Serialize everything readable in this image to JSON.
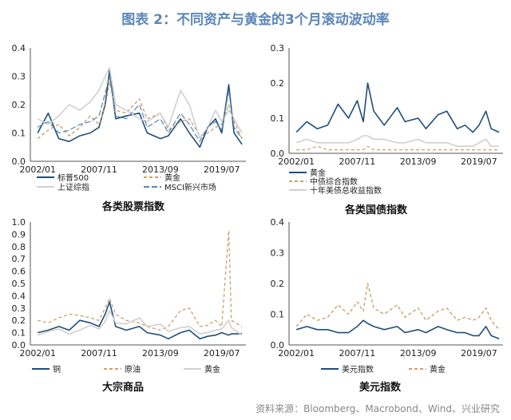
{
  "title": "图表 2：不同资产与黄金的3个月滚动波动率",
  "source": "资料来源：Bloomberg、Macrobond、Wind、兴业研究",
  "chart_data": [
    {
      "type": "line",
      "subtitle": "各类股票指数",
      "xticks": [
        "2002/01",
        "2007/11",
        "2013/09",
        "2019/07"
      ],
      "yticks": [
        "0.0",
        "0.1",
        "0.2",
        "0.3",
        "0.4"
      ],
      "ylim": [
        0,
        0.4
      ],
      "x": [
        "2002/01",
        "2003/01",
        "2004/01",
        "2005/01",
        "2006/01",
        "2007/01",
        "2007/11",
        "2008/06",
        "2008/11",
        "2009/06",
        "2010/06",
        "2011/09",
        "2012/06",
        "2013/09",
        "2014/06",
        "2015/08",
        "2016/06",
        "2017/06",
        "2018/03",
        "2018/12",
        "2019/07",
        "2020/03",
        "2020/09",
        "2021/06"
      ],
      "series": [
        {
          "name": "标普500",
          "color": "#1f4e79",
          "dash": "",
          "width": 1.6,
          "values": [
            0.1,
            0.17,
            0.08,
            0.07,
            0.09,
            0.1,
            0.12,
            0.2,
            0.32,
            0.15,
            0.16,
            0.17,
            0.1,
            0.08,
            0.09,
            0.15,
            0.1,
            0.05,
            0.12,
            0.15,
            0.1,
            0.27,
            0.1,
            0.06
          ]
        },
        {
          "name": "黄金",
          "color": "#c9a26b",
          "dash": "4,3",
          "width": 1.4,
          "values": [
            0.08,
            0.11,
            0.13,
            0.09,
            0.12,
            0.16,
            0.13,
            0.19,
            0.28,
            0.18,
            0.17,
            0.22,
            0.15,
            0.17,
            0.11,
            0.14,
            0.15,
            0.09,
            0.1,
            0.12,
            0.13,
            0.2,
            0.14,
            0.08
          ]
        },
        {
          "name": "上证综指",
          "color": "#d0d0d0",
          "dash": "",
          "width": 1.6,
          "values": [
            0.15,
            0.13,
            0.16,
            0.2,
            0.18,
            0.21,
            0.25,
            0.3,
            0.33,
            0.2,
            0.18,
            0.15,
            0.14,
            0.17,
            0.12,
            0.25,
            0.2,
            0.08,
            0.12,
            0.18,
            0.14,
            0.18,
            0.15,
            0.1
          ]
        },
        {
          "name": "MSCI新兴市场",
          "color": "#5b86b8",
          "dash": "7,3",
          "width": 1.2,
          "values": [
            0.12,
            0.14,
            0.1,
            0.11,
            0.13,
            0.14,
            0.16,
            0.24,
            0.3,
            0.16,
            0.15,
            0.2,
            0.12,
            0.15,
            0.1,
            0.17,
            0.13,
            0.07,
            0.12,
            0.14,
            0.11,
            0.25,
            0.12,
            0.08
          ]
        }
      ],
      "legend": [
        {
          "name": "标普500",
          "color": "#1f4e79",
          "dash": ""
        },
        {
          "name": "黄金",
          "color": "#c9a26b",
          "dash": "4,3"
        },
        {
          "name": "上证综指",
          "color": "#d0d0d0",
          "dash": ""
        },
        {
          "name": "MSCI新兴市场",
          "color": "#5b86b8",
          "dash": "7,3"
        }
      ]
    },
    {
      "type": "line",
      "subtitle": "各类国债指数",
      "xticks": [
        "2002/01",
        "2007/11",
        "2013/09",
        "2019/07"
      ],
      "yticks": [
        "0.0",
        "0.1",
        "0.2",
        "0.3"
      ],
      "ylim": [
        0,
        0.3
      ],
      "x": [
        "2002/01",
        "2003/01",
        "2004/01",
        "2005/01",
        "2006/01",
        "2007/01",
        "2007/11",
        "2008/06",
        "2008/11",
        "2009/06",
        "2010/06",
        "2011/09",
        "2012/06",
        "2013/09",
        "2014/06",
        "2015/08",
        "2016/06",
        "2017/06",
        "2018/03",
        "2018/12",
        "2019/07",
        "2020/03",
        "2020/09",
        "2021/06"
      ],
      "series": [
        {
          "name": "黄金",
          "color": "#1f4e79",
          "dash": "",
          "width": 1.6,
          "values": [
            0.06,
            0.09,
            0.07,
            0.08,
            0.14,
            0.1,
            0.15,
            0.09,
            0.2,
            0.12,
            0.08,
            0.13,
            0.09,
            0.1,
            0.07,
            0.11,
            0.12,
            0.07,
            0.08,
            0.06,
            0.08,
            0.12,
            0.07,
            0.06
          ]
        },
        {
          "name": "中债综合指数",
          "color": "#c9a26b",
          "dash": "4,3",
          "width": 1.2,
          "values": [
            0.01,
            0.01,
            0.02,
            0.01,
            0.01,
            0.01,
            0.01,
            0.01,
            0.02,
            0.01,
            0.01,
            0.01,
            0.01,
            0.01,
            0.01,
            0.01,
            0.01,
            0.01,
            0.01,
            0.01,
            0.01,
            0.01,
            0.01,
            0.01
          ]
        },
        {
          "name": "十年美债总收益指数",
          "color": "#d0d0d0",
          "dash": "",
          "width": 1.6,
          "values": [
            0.03,
            0.04,
            0.03,
            0.03,
            0.03,
            0.03,
            0.04,
            0.05,
            0.05,
            0.04,
            0.04,
            0.03,
            0.03,
            0.04,
            0.03,
            0.03,
            0.03,
            0.02,
            0.02,
            0.02,
            0.03,
            0.04,
            0.02,
            0.02
          ]
        }
      ],
      "legend": [
        {
          "name": "黄金",
          "color": "#1f4e79",
          "dash": ""
        },
        {
          "name": "中债综合指数",
          "color": "#c9a26b",
          "dash": "4,3"
        },
        {
          "name": "十年美债总收益指数",
          "color": "#d0d0d0",
          "dash": ""
        }
      ]
    },
    {
      "type": "line",
      "subtitle": "大宗商品",
      "xticks": [
        "2002/01",
        "2007/11",
        "2013/09",
        "2019/07"
      ],
      "yticks": [
        "0.0",
        "0.1",
        "0.2",
        "0.3",
        "0.4",
        "0.5",
        "0.6",
        "0.7",
        "0.8",
        "0.9",
        "1.0"
      ],
      "ylim": [
        0,
        1.0
      ],
      "x": [
        "2002/01",
        "2003/01",
        "2004/01",
        "2005/01",
        "2006/01",
        "2007/01",
        "2007/11",
        "2008/06",
        "2008/11",
        "2009/06",
        "2010/06",
        "2011/09",
        "2012/06",
        "2013/09",
        "2014/06",
        "2015/08",
        "2016/06",
        "2017/06",
        "2018/03",
        "2018/12",
        "2019/07",
        "2020/03",
        "2020/06",
        "2021/06"
      ],
      "series": [
        {
          "name": "铜",
          "color": "#1f4e79",
          "dash": "",
          "width": 1.6,
          "values": [
            0.1,
            0.12,
            0.15,
            0.12,
            0.2,
            0.18,
            0.15,
            0.25,
            0.35,
            0.15,
            0.12,
            0.15,
            0.1,
            0.08,
            0.05,
            0.1,
            0.12,
            0.05,
            0.07,
            0.08,
            0.1,
            0.08,
            0.09,
            0.09
          ]
        },
        {
          "name": "原油",
          "color": "#c9a26b",
          "dash": "4,3",
          "width": 1.3,
          "values": [
            0.2,
            0.18,
            0.22,
            0.25,
            0.24,
            0.22,
            0.2,
            0.3,
            0.38,
            0.25,
            0.2,
            0.18,
            0.15,
            0.12,
            0.15,
            0.28,
            0.3,
            0.15,
            0.16,
            0.2,
            0.15,
            0.93,
            0.2,
            0.15
          ]
        },
        {
          "name": "黄金",
          "color": "#d0d0d0",
          "dash": "",
          "width": 1.6,
          "values": [
            0.08,
            0.11,
            0.13,
            0.09,
            0.12,
            0.16,
            0.13,
            0.19,
            0.28,
            0.18,
            0.17,
            0.22,
            0.15,
            0.17,
            0.11,
            0.14,
            0.15,
            0.09,
            0.1,
            0.12,
            0.13,
            0.2,
            0.14,
            0.08
          ]
        }
      ],
      "legend": [
        {
          "name": "铜",
          "color": "#1f4e79",
          "dash": ""
        },
        {
          "name": "原油",
          "color": "#c9a26b",
          "dash": "4,3"
        },
        {
          "name": "黄金",
          "color": "#d0d0d0",
          "dash": ""
        }
      ]
    },
    {
      "type": "line",
      "subtitle": "美元指数",
      "xticks": [
        "2002/01",
        "2007/11",
        "2013/09",
        "2019/07"
      ],
      "yticks": [
        "0.0",
        "0.1",
        "0.2",
        "0.3",
        "0.4"
      ],
      "ylim": [
        0,
        0.4
      ],
      "x": [
        "2002/01",
        "2003/01",
        "2004/01",
        "2005/01",
        "2006/01",
        "2007/01",
        "2007/11",
        "2008/06",
        "2008/11",
        "2009/06",
        "2010/06",
        "2011/09",
        "2012/06",
        "2013/09",
        "2014/06",
        "2015/08",
        "2016/06",
        "2017/06",
        "2018/03",
        "2018/12",
        "2019/07",
        "2020/03",
        "2020/09",
        "2021/06"
      ],
      "series": [
        {
          "name": "美元指数",
          "color": "#1f4e79",
          "dash": "",
          "width": 1.6,
          "values": [
            0.05,
            0.06,
            0.05,
            0.05,
            0.04,
            0.04,
            0.06,
            0.08,
            0.07,
            0.06,
            0.05,
            0.06,
            0.04,
            0.05,
            0.04,
            0.06,
            0.05,
            0.04,
            0.04,
            0.03,
            0.03,
            0.06,
            0.03,
            0.02
          ]
        },
        {
          "name": "黄金",
          "color": "#c9a26b",
          "dash": "4,3",
          "width": 1.4,
          "values": [
            0.06,
            0.1,
            0.08,
            0.09,
            0.13,
            0.1,
            0.14,
            0.11,
            0.2,
            0.12,
            0.1,
            0.13,
            0.09,
            0.12,
            0.08,
            0.11,
            0.12,
            0.08,
            0.09,
            0.08,
            0.09,
            0.12,
            0.08,
            0.05
          ]
        }
      ],
      "legend": [
        {
          "name": "美元指数",
          "color": "#1f4e79",
          "dash": ""
        },
        {
          "name": "黄金",
          "color": "#c9a26b",
          "dash": "4,3"
        }
      ]
    }
  ]
}
